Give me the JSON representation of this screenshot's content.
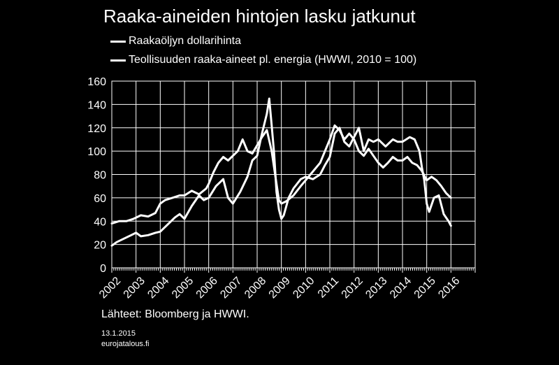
{
  "chart_data": {
    "type": "line",
    "title": "Raaka-aineiden hintojen lasku jatkunut",
    "xlabel": "",
    "ylabel": "",
    "ylim": [
      0,
      160
    ],
    "yticks": [
      0,
      20,
      40,
      60,
      80,
      100,
      120,
      140,
      160
    ],
    "xlim": [
      2002,
      2016.999
    ],
    "xticks": [
      "2002",
      "2003",
      "2004",
      "2005",
      "2006",
      "2007",
      "2008",
      "2009",
      "2010",
      "2011",
      "2012",
      "2013",
      "2014",
      "2015",
      "2016"
    ],
    "grid": true,
    "legend_position": "top-left",
    "series": [
      {
        "name": "Raakaöljyn dollarihinta",
        "color": "#ffffff",
        "x": [
          2002.0,
          2002.2,
          2002.5,
          2002.8,
          2003.0,
          2003.2,
          2003.5,
          2003.8,
          2004.0,
          2004.3,
          2004.6,
          2004.8,
          2005.0,
          2005.3,
          2005.6,
          2005.8,
          2006.0,
          2006.3,
          2006.6,
          2006.8,
          2007.0,
          2007.3,
          2007.6,
          2007.8,
          2008.0,
          2008.2,
          2008.4,
          2008.5,
          2008.6,
          2008.7,
          2008.8,
          2008.9,
          2009.0,
          2009.1,
          2009.3,
          2009.5,
          2009.8,
          2010.0,
          2010.3,
          2010.6,
          2010.8,
          2011.0,
          2011.2,
          2011.4,
          2011.6,
          2011.8,
          2012.0,
          2012.2,
          2012.4,
          2012.6,
          2012.8,
          2013.0,
          2013.3,
          2013.6,
          2013.8,
          2014.0,
          2014.3,
          2014.5,
          2014.7,
          2014.8,
          2014.9,
          2015.0,
          2015.1,
          2015.3,
          2015.5,
          2015.7,
          2015.9,
          2016.0
        ],
        "values": [
          19,
          22,
          25,
          28,
          30,
          27,
          28,
          30,
          31,
          37,
          43,
          46,
          42,
          53,
          62,
          58,
          60,
          70,
          76,
          60,
          55,
          65,
          78,
          92,
          96,
          115,
          132,
          145,
          122,
          98,
          65,
          50,
          42,
          45,
          60,
          68,
          76,
          78,
          76,
          80,
          88,
          95,
          115,
          120,
          108,
          104,
          112,
          120,
          100,
          110,
          108,
          110,
          104,
          110,
          108,
          108,
          112,
          110,
          100,
          86,
          75,
          55,
          48,
          60,
          62,
          46,
          40,
          36
        ]
      },
      {
        "name": "Teollisuuden raaka-aineet pl. energia (HWWI, 2010 = 100)",
        "color": "#ffffff",
        "x": [
          2002.0,
          2002.3,
          2002.6,
          2002.9,
          2003.2,
          2003.5,
          2003.8,
          2004.0,
          2004.2,
          2004.5,
          2004.8,
          2005.0,
          2005.3,
          2005.6,
          2005.9,
          2006.0,
          2006.2,
          2006.4,
          2006.6,
          2006.8,
          2007.0,
          2007.2,
          2007.4,
          2007.6,
          2007.8,
          2008.0,
          2008.2,
          2008.4,
          2008.6,
          2008.8,
          2008.9,
          2009.0,
          2009.2,
          2009.5,
          2009.8,
          2010.0,
          2010.2,
          2010.4,
          2010.6,
          2010.8,
          2011.0,
          2011.2,
          2011.4,
          2011.6,
          2011.8,
          2012.0,
          2012.2,
          2012.4,
          2012.6,
          2012.8,
          2013.0,
          2013.2,
          2013.4,
          2013.6,
          2013.8,
          2014.0,
          2014.2,
          2014.4,
          2014.6,
          2014.8,
          2015.0,
          2015.2,
          2015.4,
          2015.6,
          2015.8,
          2016.0
        ],
        "values": [
          38,
          40,
          40,
          42,
          45,
          44,
          47,
          55,
          58,
          60,
          62,
          62,
          66,
          63,
          68,
          72,
          82,
          90,
          95,
          92,
          96,
          100,
          110,
          100,
          98,
          105,
          112,
          118,
          100,
          72,
          58,
          55,
          57,
          62,
          70,
          75,
          80,
          85,
          90,
          100,
          110,
          122,
          118,
          110,
          115,
          110,
          100,
          96,
          102,
          96,
          90,
          86,
          90,
          95,
          92,
          92,
          95,
          90,
          88,
          83,
          75,
          78,
          75,
          70,
          64,
          60
        ]
      }
    ]
  },
  "legend": {
    "item1": "Raakaöljyn dollarihinta",
    "item2": "Teollisuuden raaka-aineet pl. energia (HWWI, 2010 = 100)"
  },
  "footer": {
    "source": "Lähteet: Bloomberg ja HWWI.",
    "date": "13.1.2015",
    "site": "eurojatalous.fi"
  }
}
